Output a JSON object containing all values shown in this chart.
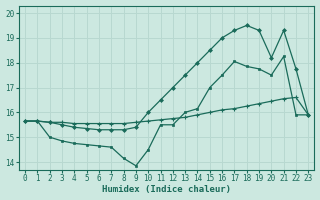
{
  "xlabel": "Humidex (Indice chaleur)",
  "xlim": [
    -0.5,
    23.5
  ],
  "ylim": [
    13.7,
    20.3
  ],
  "yticks": [
    14,
    15,
    16,
    17,
    18,
    19,
    20
  ],
  "xticks": [
    0,
    1,
    2,
    3,
    4,
    5,
    6,
    7,
    8,
    9,
    10,
    11,
    12,
    13,
    14,
    15,
    16,
    17,
    18,
    19,
    20,
    21,
    22,
    23
  ],
  "bg_color": "#cce8e0",
  "grid_color": "#b8d8d0",
  "line_color": "#1a6b5a",
  "line_flat_x": [
    0,
    1,
    2,
    3,
    4,
    5,
    6,
    7,
    8,
    9,
    10,
    11,
    12,
    13,
    14,
    15,
    16,
    17,
    18,
    19,
    20,
    21,
    22,
    23
  ],
  "line_flat_y": [
    15.65,
    15.65,
    15.6,
    15.6,
    15.55,
    15.55,
    15.55,
    15.55,
    15.55,
    15.6,
    15.65,
    15.7,
    15.75,
    15.8,
    15.9,
    16.0,
    16.1,
    16.15,
    16.25,
    16.35,
    16.45,
    16.55,
    16.6,
    15.9
  ],
  "line_diag_x": [
    0,
    1,
    2,
    3,
    4,
    5,
    6,
    7,
    8,
    9,
    10,
    11,
    12,
    13,
    14,
    15,
    16,
    17,
    18,
    19,
    20,
    21,
    22,
    23
  ],
  "line_diag_y": [
    15.65,
    15.65,
    15.6,
    15.5,
    15.4,
    15.35,
    15.3,
    15.3,
    15.3,
    15.4,
    16.0,
    16.5,
    17.0,
    17.5,
    18.0,
    18.5,
    19.0,
    19.3,
    19.5,
    19.3,
    18.2,
    19.3,
    17.75,
    15.9
  ],
  "line_zigzag_x": [
    0,
    1,
    2,
    3,
    4,
    5,
    6,
    7,
    8,
    9,
    10,
    11,
    12,
    13,
    14,
    15,
    16,
    17,
    18,
    19,
    20,
    21,
    22,
    23
  ],
  "line_zigzag_y": [
    15.65,
    15.65,
    15.0,
    14.85,
    14.75,
    14.7,
    14.65,
    14.6,
    14.15,
    13.85,
    14.5,
    15.5,
    15.5,
    16.0,
    16.15,
    17.0,
    17.5,
    18.05,
    17.85,
    17.75,
    17.5,
    18.25,
    15.9,
    15.9
  ]
}
